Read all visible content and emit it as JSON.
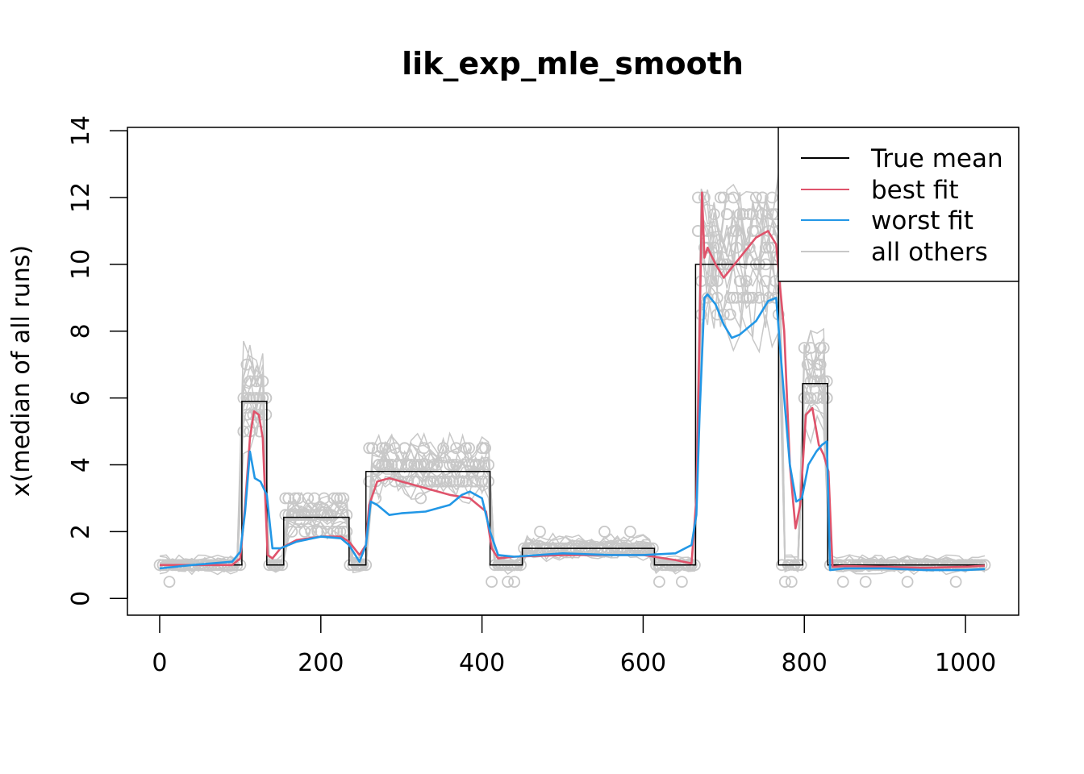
{
  "chart_data": {
    "type": "line",
    "title": "lik_exp_mle_smooth",
    "xlabel": "",
    "ylabel": "x(median of all runs)",
    "xlim": [
      -40,
      1066
    ],
    "ylim": [
      -0.5,
      14.1
    ],
    "x_ticks": [
      0,
      200,
      400,
      600,
      800,
      1000
    ],
    "y_ticks": [
      0,
      2,
      4,
      6,
      8,
      10,
      12,
      14
    ],
    "grid": false,
    "legend_position": "top-right",
    "legend": [
      {
        "label": "True mean",
        "color": "#000000"
      },
      {
        "label": "best fit",
        "color": "#DF536B"
      },
      {
        "label": "worst fit",
        "color": "#2297E6"
      },
      {
        "label": "all others",
        "color": "#C8C8C8"
      }
    ],
    "true_mean": {
      "x": [
        0,
        102,
        102,
        133,
        133,
        154,
        154,
        235,
        235,
        256,
        256,
        410,
        410,
        450,
        450,
        614,
        614,
        665,
        665,
        768,
        768,
        798,
        798,
        829,
        829,
        1024
      ],
      "y": [
        1,
        1,
        5.9,
        5.9,
        1,
        1,
        2.43,
        2.43,
        1,
        1,
        3.8,
        3.8,
        1,
        1,
        1.5,
        1.5,
        1,
        1,
        10,
        10,
        1,
        1,
        6.43,
        6.43,
        1,
        1
      ]
    },
    "best_fit": {
      "x": [
        0,
        40,
        90,
        100,
        106,
        112,
        117,
        123,
        128,
        134,
        140,
        150,
        170,
        200,
        225,
        235,
        248,
        256,
        260,
        270,
        285,
        300,
        330,
        360,
        385,
        405,
        412,
        420,
        440,
        500,
        560,
        600,
        640,
        660,
        666,
        670,
        673,
        676,
        680,
        690,
        700,
        720,
        740,
        755,
        765,
        775,
        782,
        789,
        795,
        802,
        810,
        818,
        824,
        830,
        835,
        850,
        900,
        950,
        1000,
        1024
      ],
      "y": [
        1.0,
        1.0,
        1.0,
        1.2,
        2.8,
        4.8,
        5.6,
        5.5,
        4.8,
        1.3,
        1.2,
        1.5,
        1.75,
        1.85,
        1.85,
        1.7,
        1.3,
        1.6,
        2.8,
        3.5,
        3.6,
        3.5,
        3.3,
        3.1,
        3.0,
        2.6,
        1.5,
        1.2,
        1.25,
        1.3,
        1.3,
        1.3,
        1.15,
        1.05,
        3.0,
        8.0,
        12.15,
        10.2,
        10.5,
        10.0,
        9.6,
        10.2,
        10.8,
        11.0,
        10.6,
        8.0,
        4.0,
        2.1,
        2.8,
        5.5,
        5.7,
        4.6,
        4.3,
        3.8,
        0.95,
        0.97,
        0.95,
        0.92,
        0.95,
        0.98
      ]
    },
    "worst_fit": {
      "x": [
        0,
        40,
        90,
        100,
        106,
        112,
        118,
        125,
        133,
        140,
        150,
        170,
        200,
        225,
        235,
        248,
        256,
        262,
        270,
        285,
        300,
        330,
        360,
        375,
        385,
        400,
        410,
        420,
        440,
        500,
        560,
        600,
        640,
        660,
        666,
        670,
        676,
        680,
        690,
        700,
        710,
        720,
        740,
        755,
        765,
        775,
        782,
        790,
        797,
        805,
        815,
        822,
        828,
        832,
        850,
        900,
        950,
        1000,
        1024
      ],
      "y": [
        0.9,
        1.0,
        1.1,
        1.4,
        2.6,
        4.4,
        3.6,
        3.5,
        3.1,
        1.5,
        1.5,
        1.7,
        1.85,
        1.8,
        1.6,
        1.1,
        1.6,
        2.9,
        2.8,
        2.5,
        2.55,
        2.6,
        2.8,
        3.1,
        3.2,
        3.0,
        2.0,
        1.3,
        1.25,
        1.35,
        1.3,
        1.3,
        1.35,
        1.6,
        2.5,
        5.5,
        9.0,
        9.1,
        8.8,
        8.2,
        7.8,
        7.9,
        8.3,
        8.9,
        9.0,
        6.0,
        4.0,
        2.9,
        3.0,
        4.0,
        4.4,
        4.6,
        4.7,
        0.85,
        0.9,
        0.9,
        0.85,
        0.85,
        0.88
      ]
    }
  }
}
